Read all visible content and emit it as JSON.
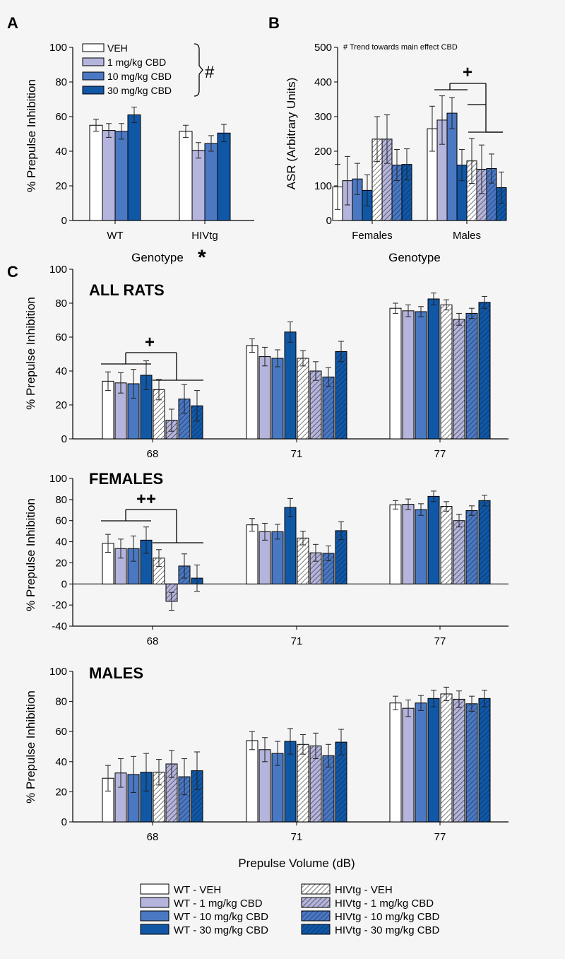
{
  "colors": {
    "veh": "#ffffff",
    "mg1": "#b4b4dc",
    "mg10": "#4a78c2",
    "mg30": "#1057a6",
    "stroke": "#000000",
    "background": "#f5f5f5"
  },
  "legend_bottom": {
    "wt": [
      "WT - VEH",
      "WT - 1 mg/kg CBD",
      "WT - 10 mg/kg CBD",
      "WT - 30 mg/kg CBD"
    ],
    "hiv": [
      "HIVtg - VEH",
      "HIVtg - 1 mg/kg CBD",
      "HIVtg - 10 mg/kg CBD",
      "HIVtg - 30 mg/kg CBD"
    ]
  },
  "chart_data": [
    {
      "id": "A",
      "panel_label": "A",
      "type": "bar",
      "ylabel": "% Prepulse Inhibition",
      "xlabel": "Genotype",
      "ylim": [
        0,
        100
      ],
      "yticks": [
        0,
        20,
        40,
        60,
        80,
        100
      ],
      "categories": [
        "WT",
        "HIVtg"
      ],
      "legend": [
        "VEH",
        "1 mg/kg CBD",
        "10 mg/kg CBD",
        "30 mg/kg CBD"
      ],
      "series": [
        {
          "name": "VEH",
          "values": [
            55,
            51.5
          ],
          "errors": [
            3.5,
            3.5
          ]
        },
        {
          "name": "1 mg/kg CBD",
          "values": [
            52,
            40.5
          ],
          "errors": [
            4,
            4.5
          ]
        },
        {
          "name": "10 mg/kg CBD",
          "values": [
            51.5,
            44.5
          ],
          "errors": [
            4.5,
            4.5
          ]
        },
        {
          "name": "30 mg/kg CBD",
          "values": [
            61,
            50.5
          ],
          "errors": [
            4.5,
            5
          ]
        }
      ],
      "annotations": {
        "legend_mark": "#",
        "xlabel_mark": "*"
      }
    },
    {
      "id": "B",
      "panel_label": "B",
      "type": "bar",
      "ylabel": "ASR (Arbitrary Units)",
      "xlabel": "Genotype",
      "ylim": [
        0,
        500
      ],
      "yticks": [
        0,
        100,
        200,
        300,
        400,
        500
      ],
      "categories": [
        "Females",
        "Males"
      ],
      "note": "# Trend towards main effect CBD",
      "series": [
        {
          "name": "WT - VEH",
          "values": [
            97,
            265
          ],
          "errors": [
            65,
            65
          ]
        },
        {
          "name": "WT - 1 mg/kg CBD",
          "values": [
            115,
            290
          ],
          "errors": [
            70,
            70
          ]
        },
        {
          "name": "WT - 10 mg/kg CBD",
          "values": [
            120,
            310
          ],
          "errors": [
            45,
            45
          ]
        },
        {
          "name": "WT - 30 mg/kg CBD",
          "values": [
            87,
            160
          ],
          "errors": [
            45,
            45
          ]
        },
        {
          "name": "HIVtg - VEH",
          "values": [
            235,
            172
          ],
          "errors": [
            65,
            65
          ]
        },
        {
          "name": "HIVtg - 1 mg/kg CBD",
          "values": [
            235,
            148
          ],
          "errors": [
            70,
            70
          ]
        },
        {
          "name": "HIVtg - 10 mg/kg CBD",
          "values": [
            160,
            150
          ],
          "errors": [
            45,
            42
          ]
        },
        {
          "name": "HIVtg - 30 mg/kg CBD",
          "values": [
            162,
            95
          ],
          "errors": [
            45,
            45
          ]
        }
      ],
      "annotations": {
        "sig_mark": "+"
      }
    },
    {
      "id": "C1",
      "panel_label": "C",
      "title": "ALL RATS",
      "type": "bar",
      "ylabel": "% Prepulse Inhibition",
      "ylim": [
        0,
        100
      ],
      "yticks": [
        0,
        20,
        40,
        60,
        80,
        100
      ],
      "categories": [
        "68",
        "71",
        "77"
      ],
      "series": [
        {
          "name": "WT - VEH",
          "values": [
            34,
            55,
            77
          ],
          "errors": [
            5.5,
            4,
            3
          ]
        },
        {
          "name": "WT - 1 mg/kg CBD",
          "values": [
            33,
            48.5,
            75.5
          ],
          "errors": [
            6,
            5.5,
            3.5
          ]
        },
        {
          "name": "WT - 10 mg/kg CBD",
          "values": [
            32.5,
            47.5,
            75
          ],
          "errors": [
            8.5,
            5,
            3
          ]
        },
        {
          "name": "WT - 30 mg/kg CBD",
          "values": [
            37.5,
            63,
            82.5
          ],
          "errors": [
            8.5,
            6,
            3.5
          ]
        },
        {
          "name": "HIVtg - VEH",
          "values": [
            29,
            47.5,
            79
          ],
          "errors": [
            6,
            4.5,
            3
          ]
        },
        {
          "name": "HIVtg - 1 mg/kg CBD",
          "values": [
            11,
            40,
            70.5
          ],
          "errors": [
            6.5,
            5.5,
            3.5
          ]
        },
        {
          "name": "HIVtg - 10 mg/kg CBD",
          "values": [
            23.5,
            36.5,
            74
          ],
          "errors": [
            8.5,
            5.5,
            3
          ]
        },
        {
          "name": "HIVtg - 30 mg/kg CBD",
          "values": [
            19.5,
            51.5,
            80.5
          ],
          "errors": [
            9,
            6,
            3.5
          ]
        }
      ],
      "annotations": {
        "sig_mark": "+"
      }
    },
    {
      "id": "C2",
      "title": "FEMALES",
      "type": "bar",
      "ylabel": "% Prepulse Inhibition",
      "ylim": [
        -40,
        100
      ],
      "yticks": [
        -40,
        -20,
        0,
        20,
        40,
        60,
        80,
        100
      ],
      "categories": [
        "68",
        "71",
        "77"
      ],
      "series": [
        {
          "name": "WT - VEH",
          "values": [
            38.5,
            56,
            75
          ],
          "errors": [
            8.5,
            6,
            4
          ]
        },
        {
          "name": "WT - 1 mg/kg CBD",
          "values": [
            33.5,
            49.5,
            75.5
          ],
          "errors": [
            9,
            8,
            5
          ]
        },
        {
          "name": "WT - 10 mg/kg CBD",
          "values": [
            33.5,
            49.5,
            70.5
          ],
          "errors": [
            12,
            7,
            5.5
          ]
        },
        {
          "name": "WT - 30 mg/kg CBD",
          "values": [
            41.5,
            72.5,
            83
          ],
          "errors": [
            12.5,
            8.5,
            5
          ]
        },
        {
          "name": "HIVtg - VEH",
          "values": [
            24.5,
            43.5,
            73.5
          ],
          "errors": [
            8,
            6.5,
            4.5
          ]
        },
        {
          "name": "HIVtg - 1 mg/kg CBD",
          "values": [
            -16.5,
            29.5,
            60
          ],
          "errors": [
            8.5,
            8,
            6
          ]
        },
        {
          "name": "HIVtg - 10 mg/kg CBD",
          "values": [
            17,
            29,
            69.5
          ],
          "errors": [
            11.5,
            7,
            4.5
          ]
        },
        {
          "name": "HIVtg - 30 mg/kg CBD",
          "values": [
            5.5,
            50.5,
            79
          ],
          "errors": [
            12.5,
            8.5,
            5
          ]
        }
      ],
      "annotations": {
        "sig_mark": "++"
      }
    },
    {
      "id": "C3",
      "title": "MALES",
      "type": "bar",
      "ylabel": "% Prepulse Inhibition",
      "xlabel": "Prepulse Volume (dB)",
      "ylim": [
        0,
        100
      ],
      "yticks": [
        0,
        20,
        40,
        60,
        80,
        100
      ],
      "categories": [
        "68",
        "71",
        "77"
      ],
      "series": [
        {
          "name": "WT - VEH",
          "values": [
            29,
            54,
            79
          ],
          "errors": [
            8.5,
            6,
            4.5
          ]
        },
        {
          "name": "WT - 1 mg/kg CBD",
          "values": [
            32.5,
            48,
            75.5
          ],
          "errors": [
            9.5,
            8,
            5.5
          ]
        },
        {
          "name": "WT - 10 mg/kg CBD",
          "values": [
            31.5,
            45.5,
            79
          ],
          "errors": [
            12,
            8,
            5
          ]
        },
        {
          "name": "WT - 30 mg/kg CBD",
          "values": [
            33,
            53.5,
            82
          ],
          "errors": [
            12.5,
            8.5,
            5.5
          ]
        },
        {
          "name": "HIVtg - VEH",
          "values": [
            33,
            51.5,
            85
          ],
          "errors": [
            8.5,
            6.5,
            4.5
          ]
        },
        {
          "name": "HIVtg - 1 mg/kg CBD",
          "values": [
            38.5,
            50.5,
            81.5
          ],
          "errors": [
            9,
            8.5,
            5.5
          ]
        },
        {
          "name": "HIVtg - 10 mg/kg CBD",
          "values": [
            30,
            44,
            78.5
          ],
          "errors": [
            12,
            7.5,
            5
          ]
        },
        {
          "name": "HIVtg - 30 mg/kg CBD",
          "values": [
            34,
            53,
            82
          ],
          "errors": [
            12.5,
            8.5,
            5.5
          ]
        }
      ]
    }
  ]
}
